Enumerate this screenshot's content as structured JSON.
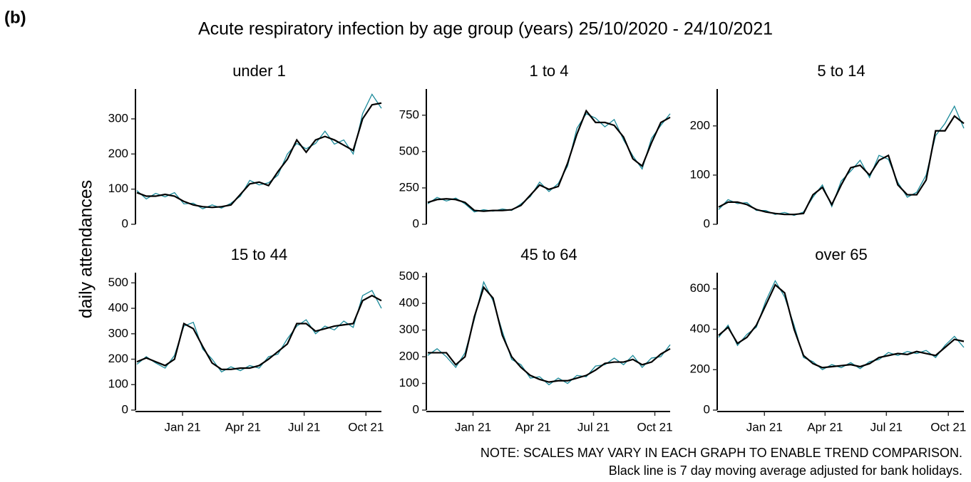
{
  "figure": {
    "tag": "(b)",
    "title": "Acute respiratory infection by age group (years) 25/10/2020 - 24/10/2021",
    "ylabel": "daily attendances",
    "notes": [
      "NOTE: SCALES MAY VARY IN EACH GRAPH TO ENABLE TREND COMPARISON.",
      "Black line is 7 day moving average adjusted for bank holidays."
    ]
  },
  "chart_data": [
    {
      "type": "line",
      "title": "under 1",
      "x": [
        0,
        14,
        28,
        42,
        56,
        70,
        84,
        98,
        112,
        126,
        140,
        154,
        168,
        182,
        196,
        210,
        224,
        238,
        252,
        266,
        280,
        294,
        308,
        322,
        336,
        350,
        364
      ],
      "xlim": [
        0,
        364
      ],
      "ylim": [
        0,
        385
      ],
      "yticks": [
        0,
        100,
        200,
        300
      ],
      "series": [
        {
          "color": "#1b8a9a",
          "values": [
            96,
            72,
            88,
            78,
            90,
            58,
            60,
            44,
            55,
            46,
            60,
            80,
            125,
            112,
            118,
            140,
            200,
            230,
            215,
            230,
            265,
            228,
            240,
            200,
            315,
            370,
            330
          ]
        },
        {
          "color": "#000000",
          "values": [
            90,
            80,
            80,
            85,
            80,
            65,
            55,
            50,
            48,
            50,
            55,
            85,
            115,
            120,
            110,
            150,
            185,
            240,
            205,
            240,
            250,
            240,
            225,
            210,
            300,
            340,
            345
          ]
        }
      ]
    },
    {
      "type": "line",
      "title": "1 to 4",
      "x": [
        0,
        14,
        28,
        42,
        56,
        70,
        84,
        98,
        112,
        126,
        140,
        154,
        168,
        182,
        196,
        210,
        224,
        238,
        252,
        266,
        280,
        294,
        308,
        322,
        336,
        350,
        364
      ],
      "xlim": [
        0,
        364
      ],
      "ylim": [
        0,
        930
      ],
      "yticks": [
        0,
        250,
        500,
        750
      ],
      "series": [
        {
          "color": "#1b8a9a",
          "values": [
            140,
            185,
            160,
            180,
            140,
            85,
            100,
            90,
            105,
            95,
            140,
            190,
            290,
            225,
            280,
            400,
            660,
            760,
            730,
            670,
            720,
            580,
            470,
            380,
            590,
            680,
            760
          ]
        },
        {
          "color": "#000000",
          "values": [
            150,
            170,
            175,
            170,
            150,
            95,
            90,
            95,
            95,
            100,
            130,
            200,
            270,
            240,
            260,
            420,
            620,
            780,
            700,
            700,
            680,
            600,
            450,
            400,
            560,
            700,
            735
          ]
        }
      ]
    },
    {
      "type": "line",
      "title": "5 to 14",
      "x": [
        0,
        14,
        28,
        42,
        56,
        70,
        84,
        98,
        112,
        126,
        140,
        154,
        168,
        182,
        196,
        210,
        224,
        238,
        252,
        266,
        280,
        294,
        308,
        322,
        336,
        350,
        364
      ],
      "xlim": [
        0,
        364
      ],
      "ylim": [
        0,
        275
      ],
      "yticks": [
        0,
        100,
        200
      ],
      "series": [
        {
          "color": "#1b8a9a",
          "values": [
            30,
            50,
            42,
            44,
            28,
            28,
            20,
            24,
            18,
            25,
            55,
            80,
            36,
            88,
            108,
            130,
            95,
            140,
            132,
            85,
            55,
            65,
            100,
            180,
            205,
            240,
            195
          ]
        },
        {
          "color": "#000000",
          "values": [
            35,
            45,
            45,
            40,
            30,
            25,
            22,
            20,
            20,
            22,
            60,
            75,
            40,
            80,
            115,
            120,
            100,
            130,
            140,
            80,
            60,
            60,
            90,
            190,
            190,
            220,
            205
          ]
        }
      ]
    },
    {
      "type": "line",
      "title": "15 to 44",
      "x": [
        0,
        14,
        28,
        42,
        56,
        70,
        84,
        98,
        112,
        126,
        140,
        154,
        168,
        182,
        196,
        210,
        224,
        238,
        252,
        266,
        280,
        294,
        308,
        322,
        336,
        350,
        364
      ],
      "xlim": [
        0,
        364
      ],
      "ylim": [
        0,
        540
      ],
      "yticks": [
        0,
        100,
        200,
        300,
        400,
        500
      ],
      "xticks": [
        {
          "value": 68,
          "label": "Jan 21"
        },
        {
          "value": 158,
          "label": "Apr 21"
        },
        {
          "value": 249,
          "label": "Jul 21"
        },
        {
          "value": 341,
          "label": "Oct 21"
        }
      ],
      "series": [
        {
          "color": "#1b8a9a",
          "values": [
            180,
            210,
            185,
            165,
            215,
            330,
            345,
            240,
            200,
            150,
            170,
            155,
            175,
            165,
            210,
            220,
            280,
            330,
            355,
            300,
            330,
            315,
            350,
            325,
            450,
            470,
            400
          ]
        },
        {
          "color": "#000000",
          "values": [
            190,
            205,
            190,
            175,
            200,
            340,
            320,
            250,
            185,
            160,
            160,
            165,
            165,
            175,
            200,
            230,
            260,
            340,
            340,
            310,
            320,
            330,
            335,
            340,
            430,
            450,
            430
          ]
        }
      ]
    },
    {
      "type": "line",
      "title": "45 to 64",
      "x": [
        0,
        14,
        28,
        42,
        56,
        70,
        84,
        98,
        112,
        126,
        140,
        154,
        168,
        182,
        196,
        210,
        224,
        238,
        252,
        266,
        280,
        294,
        308,
        322,
        336,
        350,
        364
      ],
      "xlim": [
        0,
        364
      ],
      "ylim": [
        0,
        515
      ],
      "yticks": [
        0,
        100,
        200,
        300,
        400,
        500
      ],
      "xticks": [
        {
          "value": 68,
          "label": "Jan 21"
        },
        {
          "value": 158,
          "label": "Apr 21"
        },
        {
          "value": 249,
          "label": "Jul 21"
        },
        {
          "value": 341,
          "label": "Oct 21"
        }
      ],
      "series": [
        {
          "color": "#1b8a9a",
          "values": [
            205,
            230,
            200,
            160,
            215,
            340,
            480,
            410,
            295,
            190,
            170,
            120,
            125,
            95,
            120,
            100,
            130,
            125,
            165,
            170,
            195,
            170,
            205,
            160,
            195,
            200,
            245
          ]
        },
        {
          "color": "#000000",
          "values": [
            215,
            215,
            215,
            170,
            200,
            350,
            460,
            420,
            280,
            200,
            160,
            130,
            115,
            105,
            110,
            110,
            120,
            130,
            150,
            175,
            180,
            180,
            190,
            170,
            180,
            210,
            230
          ]
        }
      ]
    },
    {
      "type": "line",
      "title": "over 65",
      "x": [
        0,
        14,
        28,
        42,
        56,
        70,
        84,
        98,
        112,
        126,
        140,
        154,
        168,
        182,
        196,
        210,
        224,
        238,
        252,
        266,
        280,
        294,
        308,
        322,
        336,
        350,
        364
      ],
      "xlim": [
        0,
        364
      ],
      "ylim": [
        0,
        680
      ],
      "yticks": [
        0,
        200,
        400,
        600
      ],
      "xticks": [
        {
          "value": 68,
          "label": "Jan 21"
        },
        {
          "value": 158,
          "label": "Apr 21"
        },
        {
          "value": 249,
          "label": "Jul 21"
        },
        {
          "value": 341,
          "label": "Oct 21"
        }
      ],
      "series": [
        {
          "color": "#1b8a9a",
          "values": [
            360,
            420,
            320,
            375,
            410,
            540,
            640,
            560,
            420,
            260,
            240,
            200,
            225,
            210,
            235,
            205,
            240,
            250,
            285,
            270,
            290,
            280,
            295,
            260,
            320,
            365,
            310
          ]
        },
        {
          "color": "#000000",
          "values": [
            370,
            410,
            330,
            360,
            420,
            520,
            620,
            580,
            400,
            270,
            230,
            210,
            215,
            220,
            225,
            215,
            230,
            260,
            270,
            280,
            275,
            290,
            280,
            270,
            310,
            350,
            340
          ]
        }
      ]
    }
  ]
}
